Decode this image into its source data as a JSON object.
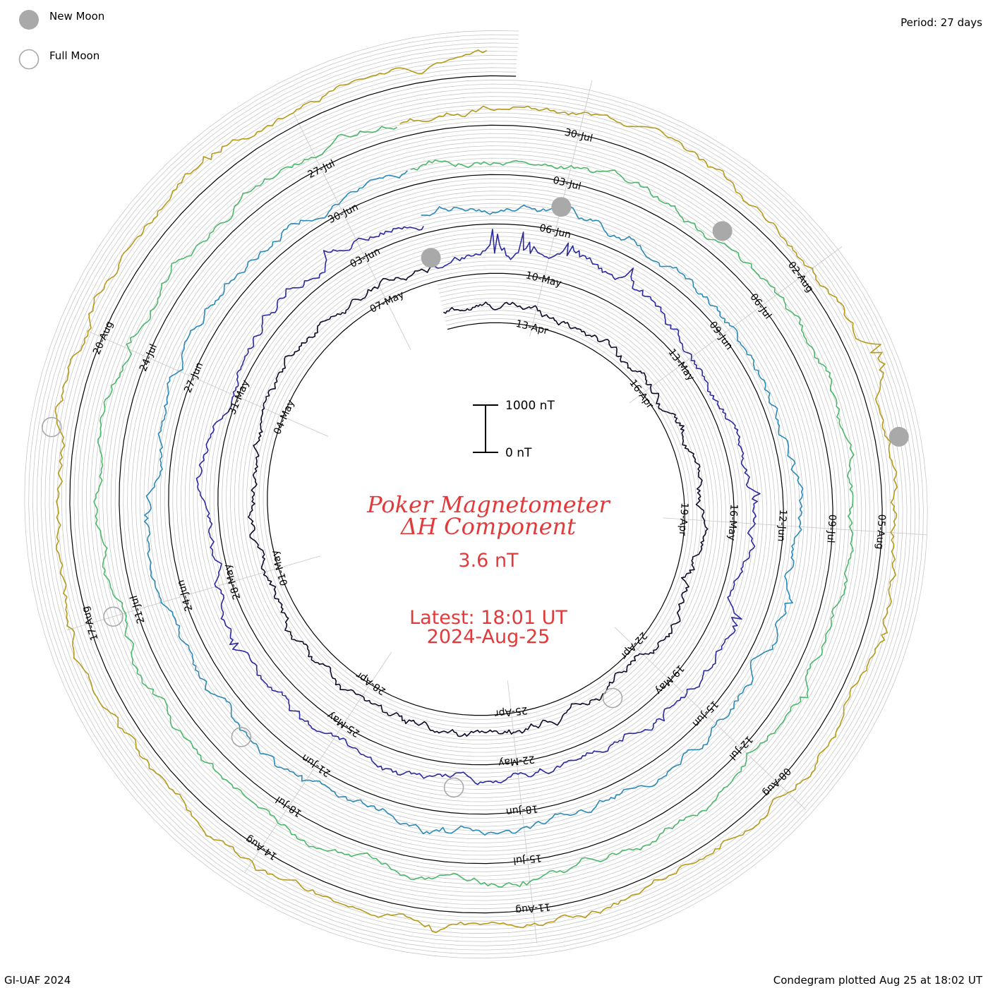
{
  "legend": {
    "new_moon": "New Moon",
    "full_moon": "Full Moon"
  },
  "period": "Period: 27 days",
  "footer": {
    "left": "GI-UAF 2024",
    "right": "Condegram plotted Aug 25 at 18:02 UT"
  },
  "center": {
    "title_line1": "Poker Magnetometer",
    "title_line2": "ΔH Component",
    "value": "3.6 nT",
    "latest_time": "Latest: 18:01 UT",
    "latest_date": "2024-Aug-25"
  },
  "colors": {
    "text_red": "#e23a3a",
    "grid": "#c8c8c8",
    "moon_fill": "#a9a9a9"
  },
  "chart_data": {
    "type": "line",
    "subtype": "condegram spiral",
    "period_days": 27,
    "scale": {
      "top": "1000 nT",
      "bottom": "0 nT",
      "max": 1000,
      "min": 0
    },
    "date_ticks": [
      [
        "13-Apr",
        "16-Apr",
        "19-Apr",
        "22-Apr",
        "25-Apr",
        "28-Apr",
        "01-May",
        "04-May",
        "07-May"
      ],
      [
        "10-May",
        "13-May",
        "16-May",
        "19-May",
        "22-May",
        "25-May",
        "28-May",
        "31-May",
        "03-Jun"
      ],
      [
        "06-Jun",
        "09-Jun",
        "12-Jun",
        "15-Jun",
        "18-Jun",
        "21-Jun",
        "24-Jun",
        "27-Jun",
        "30-Jun"
      ],
      [
        "03-Jul",
        "06-Jul",
        "09-Jul",
        "12-Jul",
        "15-Jul",
        "18-Jul",
        "21-Jul",
        "24-Jul",
        "27-Jul"
      ],
      [
        "30-Jul",
        "02-Aug",
        "05-Aug",
        "08-Aug",
        "11-Aug",
        "14-Aug",
        "17-Aug",
        "20-Aug"
      ]
    ],
    "series": [
      {
        "start": "2024-04-11",
        "end": "2024-05-08",
        "color": "#0b0b2a",
        "spikes": [
          [
            4,
            -120
          ],
          [
            6,
            80
          ],
          [
            9,
            -150
          ],
          [
            11,
            -60
          ],
          [
            14,
            110
          ],
          [
            16,
            160
          ],
          [
            19,
            -90
          ]
        ]
      },
      {
        "start": "2024-05-08",
        "end": "2024-06-04",
        "color": "#2a2aa0",
        "spikes": [
          [
            1.0,
            800
          ],
          [
            1.5,
            700
          ],
          [
            2.2,
            450
          ],
          [
            3.3,
            350
          ],
          [
            7.5,
            250
          ],
          [
            9.5,
            300
          ],
          [
            11.5,
            200
          ],
          [
            19.0,
            260
          ],
          [
            25.5,
            220
          ]
        ]
      },
      {
        "start": "2024-06-04",
        "end": "2024-07-01",
        "color": "#2a8ab8",
        "spikes": [
          [
            3,
            140
          ],
          [
            9,
            180
          ],
          [
            12,
            110
          ],
          [
            15,
            160
          ],
          [
            17,
            190
          ],
          [
            21,
            120
          ]
        ]
      },
      {
        "start": "2024-07-01",
        "end": "2024-07-28",
        "color": "#4cb86a",
        "spikes": [
          [
            6,
            120
          ],
          [
            10,
            160
          ],
          [
            14,
            110
          ],
          [
            19,
            130
          ],
          [
            23,
            150
          ]
        ]
      },
      {
        "start": "2024-07-28",
        "end": "2024-08-25",
        "color": "#b89a1a",
        "spikes": [
          [
            2,
            150
          ],
          [
            6,
            520
          ],
          [
            9,
            90
          ],
          [
            15,
            140
          ],
          [
            20,
            120
          ],
          [
            25,
            160
          ]
        ]
      }
    ],
    "new_moons": [
      "2024-05-08",
      "2024-06-06",
      "2024-07-05",
      "2024-08-04"
    ],
    "full_moons": [
      "2024-04-23",
      "2024-05-23",
      "2024-06-22",
      "2024-07-21",
      "2024-08-19"
    ]
  }
}
